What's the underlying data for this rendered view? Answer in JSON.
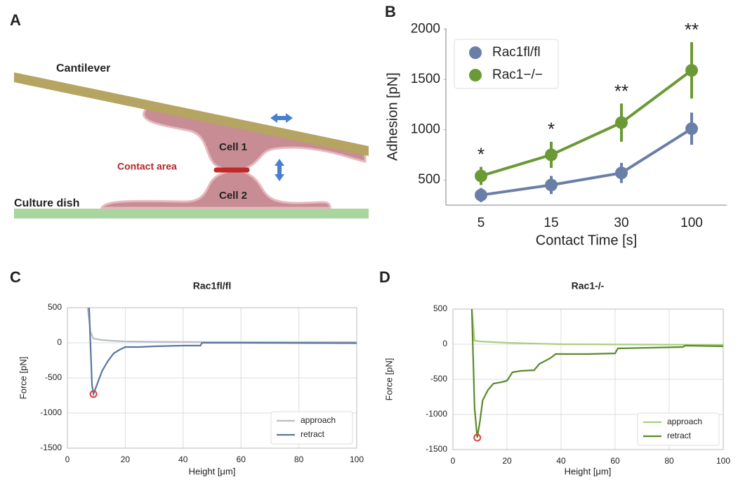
{
  "diagram": {
    "panel_label": "A",
    "cantilever": "Cantilever",
    "cell1": "Cell 1",
    "contact": "Contact area",
    "cell2": "Cell 2",
    "dish": "Culture dish"
  },
  "chart_data": [
    {
      "type": "point",
      "panel_label": "B",
      "xlabel": "Contact Time [s]",
      "ylabel": "Adhesion [pN]",
      "categories": [
        "5",
        "15",
        "30",
        "100"
      ],
      "ylim": [
        250,
        2010
      ],
      "yticks": [
        500,
        1000,
        1500,
        2000
      ],
      "grid": false,
      "legend": "upper left",
      "series": [
        {
          "name": "Rac1fl/fl",
          "color": "#6a7fa8",
          "values": [
            350,
            450,
            570,
            1010
          ],
          "errors": [
            70,
            90,
            100,
            160
          ]
        },
        {
          "name": "Rac1−/−",
          "color": "#6a9a35",
          "values": [
            540,
            750,
            1070,
            1590
          ],
          "errors": [
            90,
            130,
            190,
            280
          ]
        }
      ],
      "annotations": [
        "*",
        "*",
        "**",
        "**"
      ]
    },
    {
      "type": "line",
      "panel_label": "C",
      "title": "Rac1fl/fl",
      "xlabel": "Height [μm]",
      "ylabel": "Force [pN]",
      "xlim": [
        0,
        100
      ],
      "ylim": [
        -1500,
        500
      ],
      "xticks": [
        0,
        20,
        40,
        60,
        80,
        100
      ],
      "yticks": [
        -1500,
        -1000,
        -500,
        0,
        500
      ],
      "grid": true,
      "legend": "lower right",
      "series": [
        {
          "name": "approach",
          "color": "#b8bdcc",
          "x": [
            7,
            8,
            9,
            12,
            15,
            20,
            30,
            50,
            100
          ],
          "values": [
            500,
            150,
            60,
            40,
            30,
            20,
            15,
            10,
            10
          ]
        },
        {
          "name": "retract",
          "color": "#5a76a0",
          "x": [
            7.5,
            8.5,
            9,
            10,
            12,
            14,
            16,
            18,
            20,
            25,
            30,
            40,
            46,
            46.5,
            60,
            100
          ],
          "values": [
            500,
            -600,
            -730,
            -620,
            -400,
            -260,
            -150,
            -100,
            -60,
            -60,
            -50,
            -40,
            -40,
            0,
            0,
            -5
          ]
        }
      ],
      "min_marker": {
        "x": 9,
        "y": -730,
        "color": "#e0403a"
      }
    },
    {
      "type": "line",
      "panel_label": "D",
      "title": "Rac1-/-",
      "xlabel": "Height [μm]",
      "ylabel": "Force [pN]",
      "xlim": [
        0,
        100
      ],
      "ylim": [
        -1500,
        500
      ],
      "xticks": [
        0,
        20,
        40,
        60,
        80,
        100
      ],
      "yticks": [
        -1500,
        -1000,
        -500,
        0,
        500
      ],
      "grid": true,
      "legend": "lower right",
      "series": [
        {
          "name": "approach",
          "color": "#a9cf7e",
          "x": [
            7,
            8,
            10,
            20,
            40,
            100
          ],
          "values": [
            500,
            50,
            40,
            20,
            0,
            -10
          ]
        },
        {
          "name": "retract",
          "color": "#5b8a2b",
          "x": [
            7,
            8,
            9,
            10,
            11,
            13,
            15,
            18,
            20,
            22,
            25,
            30,
            32,
            36,
            38,
            50,
            60,
            61,
            85,
            86,
            100
          ],
          "values": [
            500,
            -900,
            -1330,
            -1100,
            -800,
            -650,
            -560,
            -540,
            -520,
            -400,
            -380,
            -370,
            -280,
            -200,
            -140,
            -140,
            -130,
            -60,
            -40,
            -20,
            -30
          ]
        }
      ],
      "min_marker": {
        "x": 9,
        "y": -1330,
        "color": "#e0403a"
      }
    }
  ]
}
